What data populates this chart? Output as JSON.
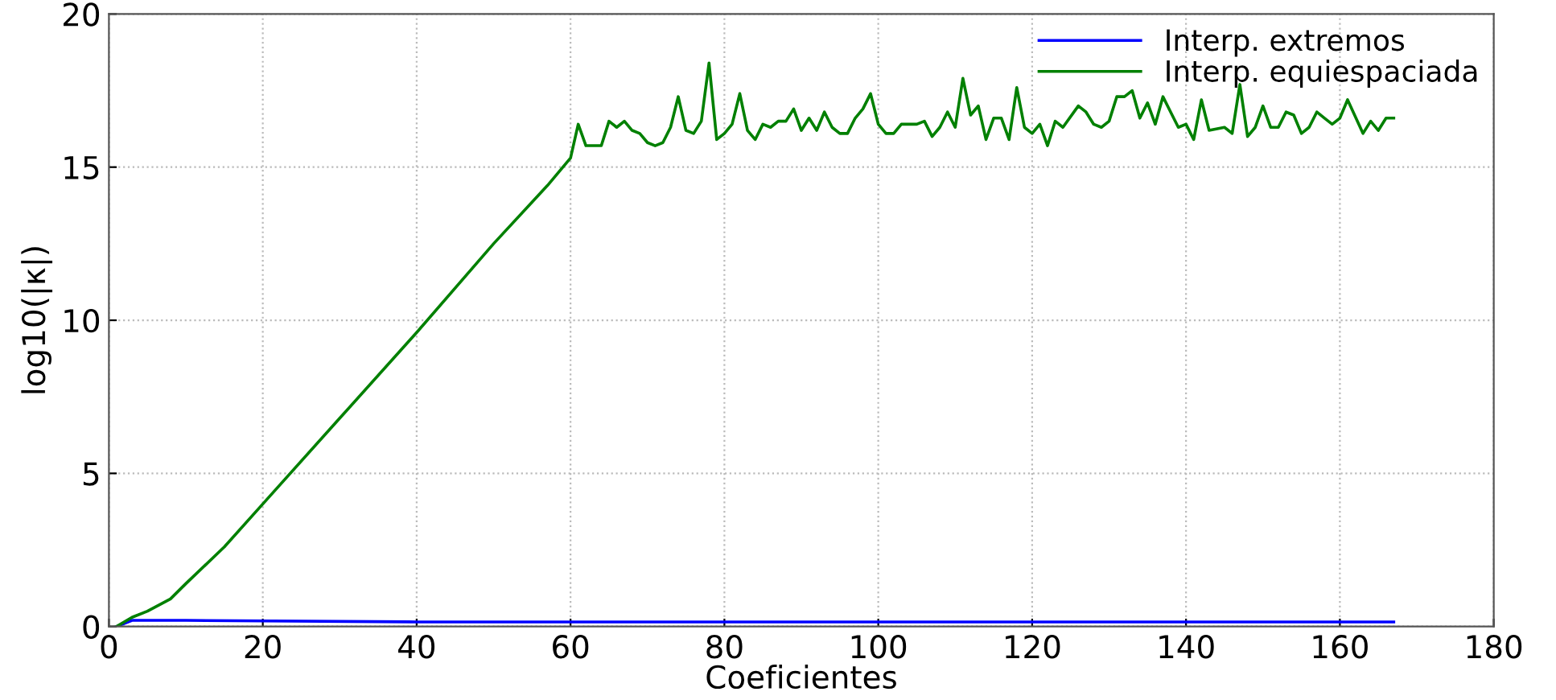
{
  "chart_data": {
    "type": "line",
    "xlabel": "Coeficientes",
    "ylabel": "log10(|κ|)",
    "xlim": [
      0,
      180
    ],
    "ylim": [
      0,
      20
    ],
    "xticks": [
      0,
      20,
      40,
      60,
      80,
      100,
      120,
      140,
      160,
      180
    ],
    "yticks": [
      0,
      5,
      10,
      15,
      20
    ],
    "grid": true,
    "legend": "top right",
    "line_style": "solid",
    "marker": "none",
    "series": [
      {
        "name": "Interp. extremos",
        "color": "#0000ff",
        "x": [
          1,
          3,
          10,
          40,
          80,
          120,
          167
        ],
        "values": [
          0,
          0.2,
          0.2,
          0.15,
          0.15,
          0.15,
          0.15
        ]
      },
      {
        "name": "Interp. equiespaciada",
        "color": "#008000",
        "x": [
          1,
          3,
          5,
          8,
          10,
          15,
          20,
          30,
          40,
          50,
          57,
          60,
          61,
          62,
          64,
          65,
          66,
          67,
          68,
          69,
          70,
          71,
          72,
          73,
          74,
          75,
          76,
          77,
          78,
          79,
          80,
          81,
          82,
          83,
          84,
          85,
          86,
          87,
          88,
          89,
          90,
          91,
          92,
          93,
          94,
          95,
          96,
          97,
          98,
          99,
          100,
          101,
          102,
          103,
          105,
          106,
          107,
          108,
          109,
          110,
          111,
          112,
          113,
          114,
          115,
          116,
          117,
          118,
          119,
          120,
          121,
          122,
          123,
          124,
          126,
          127,
          128,
          129,
          130,
          131,
          132,
          133,
          134,
          135,
          136,
          137,
          138,
          139,
          140,
          141,
          142,
          143,
          145,
          146,
          147,
          148,
          149,
          150,
          151,
          152,
          153,
          154,
          155,
          156,
          157,
          158,
          159,
          160,
          161,
          163,
          164,
          165,
          166,
          167
        ],
        "values": [
          0,
          0.3,
          0.5,
          0.9,
          1.4,
          2.6,
          4.0,
          6.8,
          9.6,
          12.5,
          14.4,
          15.3,
          16.4,
          15.7,
          15.7,
          16.5,
          16.3,
          16.5,
          16.2,
          16.1,
          15.8,
          15.7,
          15.8,
          16.3,
          17.3,
          16.2,
          16.1,
          16.5,
          18.4,
          15.9,
          16.1,
          16.4,
          17.4,
          16.2,
          15.9,
          16.4,
          16.3,
          16.5,
          16.5,
          16.9,
          16.2,
          16.6,
          16.2,
          16.8,
          16.3,
          16.1,
          16.1,
          16.6,
          16.9,
          17.4,
          16.4,
          16.1,
          16.1,
          16.4,
          16.4,
          16.5,
          16.0,
          16.3,
          16.8,
          16.3,
          17.9,
          16.7,
          17.0,
          15.9,
          16.6,
          16.6,
          15.9,
          17.6,
          16.3,
          16.1,
          16.4,
          15.7,
          16.5,
          16.3,
          17.0,
          16.8,
          16.4,
          16.3,
          16.5,
          17.3,
          17.3,
          17.5,
          16.6,
          17.1,
          16.4,
          17.3,
          16.8,
          16.3,
          16.4,
          15.9,
          17.2,
          16.2,
          16.3,
          16.1,
          17.7,
          16.0,
          16.3,
          17.0,
          16.3,
          16.3,
          16.8,
          16.7,
          16.1,
          16.3,
          16.8,
          16.6,
          16.4,
          16.6,
          17.2,
          16.1,
          16.5,
          16.2,
          16.6,
          16.6
        ]
      }
    ]
  }
}
